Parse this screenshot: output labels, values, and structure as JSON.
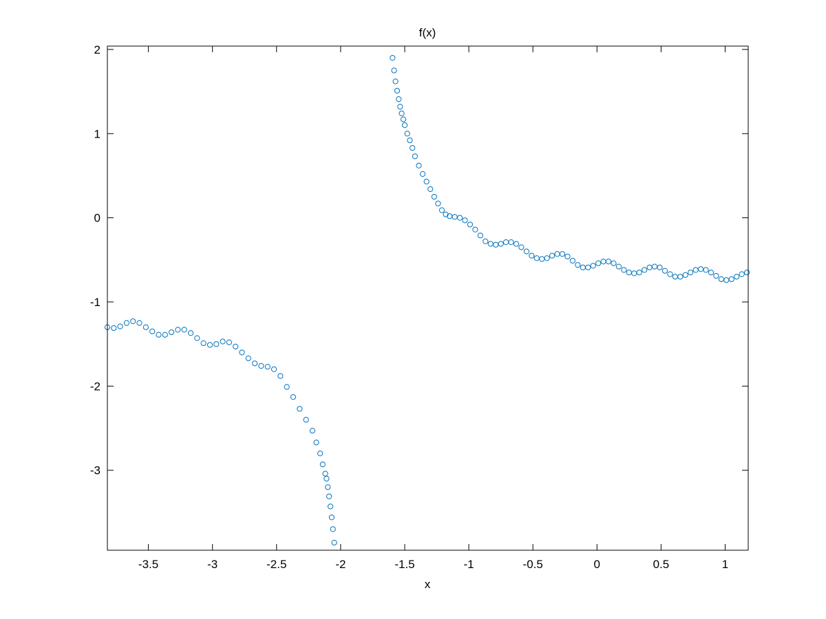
{
  "chart_data": {
    "type": "scatter",
    "title": "f(x)",
    "xlabel": "x",
    "ylabel": "",
    "xlim": [
      -3.82,
      1.18
    ],
    "ylim": [
      -3.95,
      2.04
    ],
    "xticks": [
      -3.5,
      -3,
      -2.5,
      -2,
      -1.5,
      -1,
      -0.5,
      0,
      0.5,
      1
    ],
    "xtick_labels": [
      "-3.5",
      "-3",
      "-2.5",
      "-2",
      "-1.5",
      "-1",
      "-0.5",
      "0",
      "0.5",
      "1"
    ],
    "yticks": [
      2,
      1,
      0,
      -1,
      -2,
      -3
    ],
    "ytick_labels": [
      "2",
      "1",
      "0",
      "-1",
      "-2",
      "-3"
    ],
    "grid": false,
    "marker": "open-circle",
    "marker_color": "#0072BD",
    "series": [
      {
        "points": [
          [
            -3.82,
            -1.3
          ],
          [
            -3.77,
            -1.31
          ],
          [
            -3.72,
            -1.29
          ],
          [
            -3.67,
            -1.25
          ],
          [
            -3.62,
            -1.23
          ],
          [
            -3.57,
            -1.25
          ],
          [
            -3.52,
            -1.3
          ],
          [
            -3.47,
            -1.35
          ],
          [
            -3.42,
            -1.39
          ],
          [
            -3.37,
            -1.39
          ],
          [
            -3.32,
            -1.36
          ],
          [
            -3.27,
            -1.33
          ],
          [
            -3.22,
            -1.33
          ],
          [
            -3.17,
            -1.37
          ],
          [
            -3.12,
            -1.43
          ],
          [
            -3.07,
            -1.49
          ],
          [
            -3.02,
            -1.51
          ],
          [
            -2.97,
            -1.5
          ],
          [
            -2.92,
            -1.47
          ],
          [
            -2.87,
            -1.48
          ],
          [
            -2.82,
            -1.53
          ],
          [
            -2.77,
            -1.6
          ],
          [
            -2.72,
            -1.67
          ],
          [
            -2.67,
            -1.73
          ],
          [
            -2.62,
            -1.76
          ],
          [
            -2.57,
            -1.77
          ],
          [
            -2.52,
            -1.8
          ],
          [
            -2.47,
            -1.88
          ],
          [
            -2.42,
            -2.01
          ],
          [
            -2.37,
            -2.13
          ],
          [
            -2.32,
            -2.27
          ],
          [
            -2.27,
            -2.4
          ],
          [
            -2.22,
            -2.53
          ],
          [
            -2.19,
            -2.67
          ],
          [
            -2.16,
            -2.8
          ],
          [
            -2.14,
            -2.93
          ],
          [
            -2.12,
            -3.04
          ],
          [
            -2.11,
            -3.1
          ],
          [
            -2.1,
            -3.2
          ],
          [
            -2.09,
            -3.31
          ],
          [
            -2.08,
            -3.43
          ],
          [
            -2.07,
            -3.56
          ],
          [
            -2.06,
            -3.7
          ],
          [
            -2.05,
            -3.86
          ],
          [
            -1.595,
            1.9
          ],
          [
            -1.583,
            1.75
          ],
          [
            -1.572,
            1.62
          ],
          [
            -1.559,
            1.51
          ],
          [
            -1.547,
            1.41
          ],
          [
            -1.536,
            1.32
          ],
          [
            -1.524,
            1.24
          ],
          [
            -1.511,
            1.17
          ],
          [
            -1.5,
            1.1
          ],
          [
            -1.48,
            1.0
          ],
          [
            -1.46,
            0.92
          ],
          [
            -1.44,
            0.83
          ],
          [
            -1.42,
            0.73
          ],
          [
            -1.39,
            0.62
          ],
          [
            -1.36,
            0.52
          ],
          [
            -1.33,
            0.43
          ],
          [
            -1.3,
            0.34
          ],
          [
            -1.27,
            0.25
          ],
          [
            -1.24,
            0.17
          ],
          [
            -1.21,
            0.09
          ],
          [
            -1.18,
            0.04
          ],
          [
            -1.15,
            0.02
          ],
          [
            -1.11,
            0.01
          ],
          [
            -1.07,
            0.0
          ],
          [
            -1.03,
            -0.03
          ],
          [
            -0.99,
            -0.08
          ],
          [
            -0.95,
            -0.14
          ],
          [
            -0.91,
            -0.21
          ],
          [
            -0.87,
            -0.28
          ],
          [
            -0.83,
            -0.31
          ],
          [
            -0.79,
            -0.32
          ],
          [
            -0.75,
            -0.31
          ],
          [
            -0.71,
            -0.29
          ],
          [
            -0.67,
            -0.29
          ],
          [
            -0.63,
            -0.31
          ],
          [
            -0.59,
            -0.35
          ],
          [
            -0.55,
            -0.4
          ],
          [
            -0.51,
            -0.45
          ],
          [
            -0.47,
            -0.48
          ],
          [
            -0.43,
            -0.49
          ],
          [
            -0.39,
            -0.48
          ],
          [
            -0.35,
            -0.45
          ],
          [
            -0.31,
            -0.43
          ],
          [
            -0.27,
            -0.43
          ],
          [
            -0.23,
            -0.46
          ],
          [
            -0.19,
            -0.51
          ],
          [
            -0.15,
            -0.56
          ],
          [
            -0.11,
            -0.59
          ],
          [
            -0.07,
            -0.59
          ],
          [
            -0.03,
            -0.57
          ],
          [
            0.01,
            -0.54
          ],
          [
            0.05,
            -0.52
          ],
          [
            0.09,
            -0.52
          ],
          [
            0.13,
            -0.54
          ],
          [
            0.17,
            -0.58
          ],
          [
            0.21,
            -0.62
          ],
          [
            0.25,
            -0.65
          ],
          [
            0.29,
            -0.66
          ],
          [
            0.33,
            -0.65
          ],
          [
            0.37,
            -0.62
          ],
          [
            0.41,
            -0.59
          ],
          [
            0.45,
            -0.58
          ],
          [
            0.49,
            -0.59
          ],
          [
            0.53,
            -0.63
          ],
          [
            0.57,
            -0.67
          ],
          [
            0.61,
            -0.7
          ],
          [
            0.65,
            -0.7
          ],
          [
            0.69,
            -0.68
          ],
          [
            0.73,
            -0.65
          ],
          [
            0.77,
            -0.62
          ],
          [
            0.81,
            -0.61
          ],
          [
            0.85,
            -0.62
          ],
          [
            0.89,
            -0.65
          ],
          [
            0.93,
            -0.69
          ],
          [
            0.97,
            -0.73
          ],
          [
            1.01,
            -0.74
          ],
          [
            1.05,
            -0.73
          ],
          [
            1.09,
            -0.7
          ],
          [
            1.13,
            -0.67
          ],
          [
            1.17,
            -0.65
          ]
        ]
      }
    ]
  }
}
